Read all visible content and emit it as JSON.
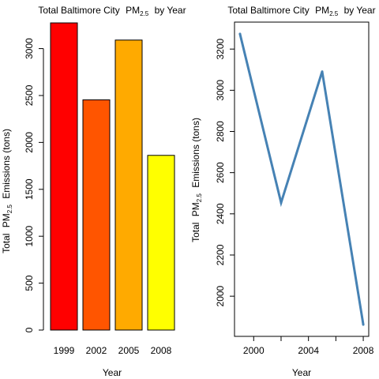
{
  "chart_data": [
    {
      "type": "bar",
      "title_main": "Total Baltimore City",
      "title_sub_prefix": "PM",
      "title_sub": "2.5",
      "title_suffix": "by Year",
      "xlabel": "Year",
      "ylabel_prefix": "Total",
      "ylabel_pm": "PM",
      "ylabel_sub": "2.5",
      "ylabel_suffix": "Emissions (tons)",
      "categories": [
        "1999",
        "2002",
        "2005",
        "2008"
      ],
      "values": [
        3274,
        2454,
        3091,
        1862
      ],
      "colors": [
        "#FF0000",
        "#FF5500",
        "#FFAA00",
        "#FFFF00"
      ],
      "ylim": [
        0,
        3274
      ],
      "yticks": [
        0,
        500,
        1000,
        1500,
        2000,
        2500,
        3000
      ],
      "ytick_labels": [
        "0",
        "500",
        "1000",
        "1500",
        "2000",
        "2500",
        "3000"
      ]
    },
    {
      "type": "line",
      "title_main": "Total Baltimore City",
      "title_sub_prefix": "PM",
      "title_sub": "2.5",
      "title_suffix": "by Year",
      "xlabel": "Year",
      "ylabel_prefix": "Total",
      "ylabel_pm": "PM",
      "ylabel_sub": "2.5",
      "ylabel_suffix": "Emissions (tons)",
      "x": [
        1999,
        2002,
        2005,
        2008
      ],
      "y": [
        3274,
        2454,
        3091,
        1862
      ],
      "line_color": "#4682B4",
      "xlim": [
        1998.6,
        2008.4
      ],
      "ylim": [
        1805,
        3331
      ],
      "xticks": [
        2000,
        2002,
        2004,
        2006,
        2008
      ],
      "xtick_labels": [
        "2000",
        "",
        "2004",
        "",
        "2008"
      ],
      "yticks": [
        2000,
        2200,
        2400,
        2600,
        2800,
        3000,
        3200
      ],
      "ytick_labels": [
        "2000",
        "2200",
        "2400",
        "2600",
        "2800",
        "3000",
        "3200"
      ]
    }
  ]
}
